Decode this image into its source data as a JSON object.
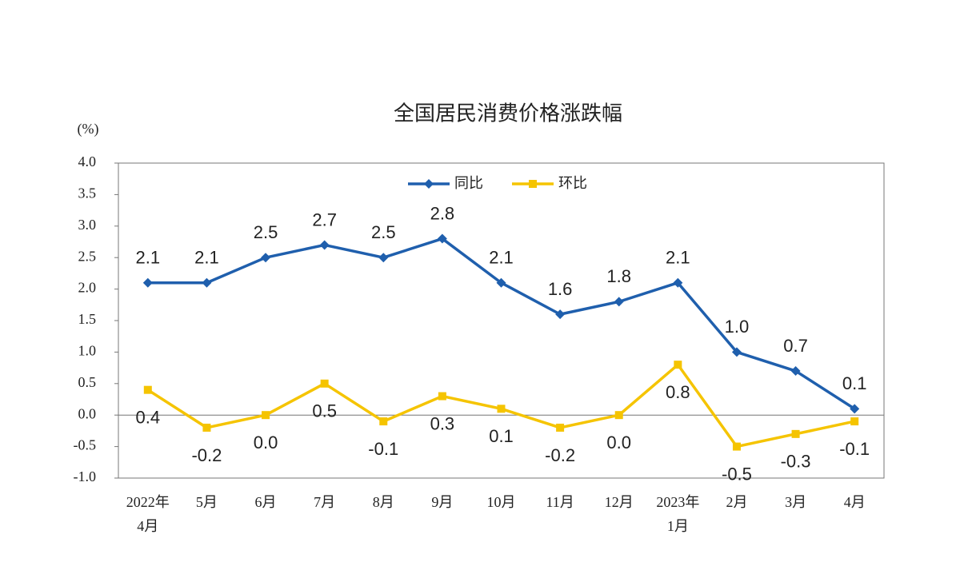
{
  "chart_data": {
    "type": "line",
    "title": "全国居民消费价格涨跌幅",
    "y_label": "(%)",
    "categories": [
      "2022年\n4月",
      "5月",
      "6月",
      "7月",
      "8月",
      "9月",
      "10月",
      "11月",
      "12月",
      "2023年\n1月",
      "2月",
      "3月",
      "4月"
    ],
    "series": [
      {
        "name": "同比",
        "color": "#1f5fad",
        "marker": "diamond",
        "values": [
          2.1,
          2.1,
          2.5,
          2.7,
          2.5,
          2.8,
          2.1,
          1.6,
          1.8,
          2.1,
          1.0,
          0.7,
          0.1
        ],
        "value_labels": [
          "2.1",
          "2.1",
          "2.5",
          "2.7",
          "2.5",
          "2.8",
          "2.1",
          "1.6",
          "1.8",
          "2.1",
          "1.0",
          "0.7",
          "0.1"
        ],
        "label_position": "above"
      },
      {
        "name": "环比",
        "color": "#f5c400",
        "marker": "square",
        "values": [
          0.4,
          -0.2,
          0.0,
          0.5,
          -0.1,
          0.3,
          0.1,
          -0.2,
          0.0,
          0.8,
          -0.5,
          -0.3,
          -0.1
        ],
        "value_labels": [
          "0.4",
          "-0.2",
          "0.0",
          "0.5",
          "-0.1",
          "0.3",
          "0.1",
          "-0.2",
          "0.0",
          "0.8",
          "-0.5",
          "-0.3",
          "-0.1"
        ],
        "label_position": "below"
      }
    ],
    "ylim": [
      -1,
      4
    ],
    "yticks": [
      {
        "value": -1,
        "label": "-1.0"
      },
      {
        "value": -0.5,
        "label": "-0.5"
      },
      {
        "value": 0,
        "label": "0.0"
      },
      {
        "value": 0.5,
        "label": "0.5"
      },
      {
        "value": 1,
        "label": "1.0"
      },
      {
        "value": 1.5,
        "label": "1.5"
      },
      {
        "value": 2,
        "label": "2.0"
      },
      {
        "value": 2.5,
        "label": "2.5"
      },
      {
        "value": 3,
        "label": "3.0"
      },
      {
        "value": 3.5,
        "label": "3.5"
      },
      {
        "value": 4,
        "label": "4.0"
      }
    ],
    "legend": "upper center"
  }
}
